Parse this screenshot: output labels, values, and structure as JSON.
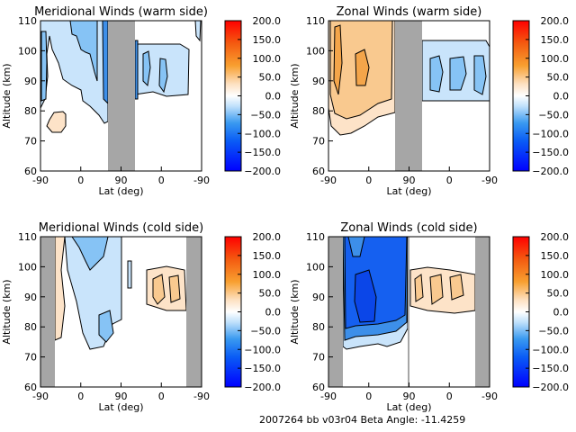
{
  "footer": "2007264 bb v03r04   Beta Angle: -11.4259",
  "colors": {
    "gap": "#a6a6a6",
    "neg1": "#c9e4fb",
    "neg2": "#86c3f5",
    "neg3": "#3d8fe9",
    "neg4": "#1560f0",
    "neg5": "#0b46e8",
    "pos1": "#fde3c8",
    "pos2": "#f9c98f",
    "pos3": "#f4a54a"
  },
  "chart_data": {
    "type": "heatmap",
    "colorbar": {
      "range": [
        -200,
        200
      ],
      "tick_labels": [
        "200.0",
        "150.0",
        "100.0",
        "50.0",
        "0.0",
        "-50.0",
        "-100.0",
        "-150.0",
        "-200.0"
      ]
    },
    "xlabel": "Lat (deg)",
    "ylabel": "Altitude (km)",
    "ylim": [
      60,
      110
    ],
    "x_tick_labels": [
      "-90",
      "0",
      "90",
      "0",
      "-90"
    ],
    "y_tick_labels": [
      "110",
      "100",
      "90",
      "80",
      "70",
      "60"
    ],
    "panels": [
      {
        "title": "Meridional Winds (warm side)",
        "field": "meridional",
        "side": "warm",
        "peak_values_m_s": {
          "min": -120,
          "max": 40
        }
      },
      {
        "title": "Zonal Winds (warm side)",
        "field": "zonal",
        "side": "warm",
        "peak_values_m_s": {
          "min": -90,
          "max": 110
        }
      },
      {
        "title": "Meridional Winds (cold side)",
        "field": "meridional",
        "side": "cold",
        "peak_values_m_s": {
          "min": -90,
          "max": 80
        }
      },
      {
        "title": "Zonal Winds (cold side)",
        "field": "zonal",
        "side": "cold",
        "peak_values_m_s": {
          "min": -190,
          "max": 90
        }
      }
    ]
  }
}
